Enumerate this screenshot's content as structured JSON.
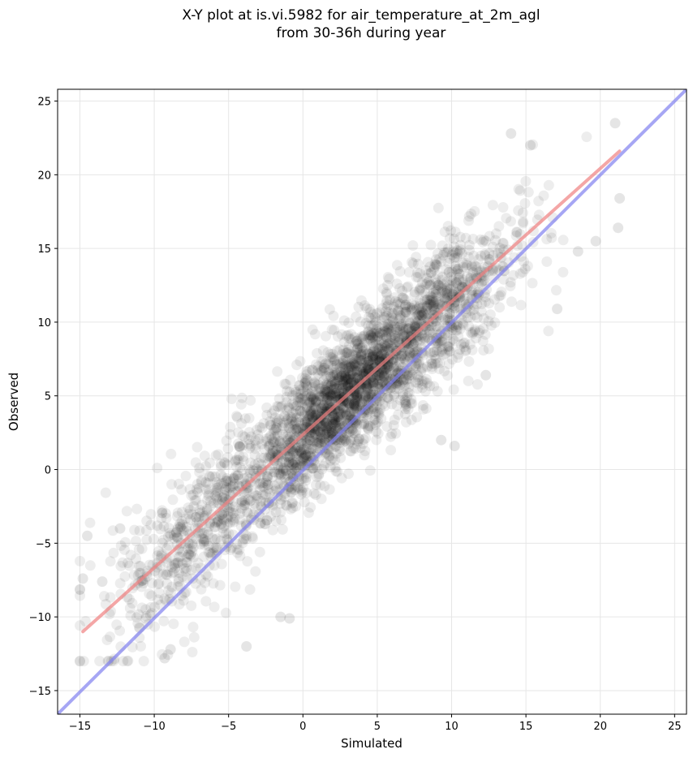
{
  "chart_data": {
    "type": "scatter",
    "title_line1": "X-Y plot at is.vi.5982 for air_temperature_at_2m_agl",
    "title_line2": "from 30-36h during year",
    "xlabel": "Simulated",
    "ylabel": "Observed",
    "xlim": [
      -16.5,
      25.8
    ],
    "ylim": [
      -16.6,
      25.8
    ],
    "xticks": [
      -15,
      -10,
      -5,
      0,
      5,
      10,
      15,
      20,
      25
    ],
    "yticks": [
      -15,
      -10,
      -5,
      0,
      5,
      10,
      15,
      20,
      25
    ],
    "xtick_labels": [
      "−15",
      "−10",
      "−5",
      "0",
      "5",
      "10",
      "15",
      "20",
      "25"
    ],
    "ytick_labels": [
      "−15",
      "−10",
      "−5",
      "0",
      "5",
      "10",
      "15",
      "20",
      "25"
    ],
    "grid": true,
    "point_color": "#000000",
    "scatter_cluster": {
      "count": 3000,
      "x_range": [
        -15,
        21.5
      ],
      "y_range": [
        -13,
        23
      ]
    },
    "series": [
      {
        "kind": "regression",
        "color": "#f08080",
        "points": [
          [
            -14.8,
            -11.0
          ],
          [
            21.3,
            21.6
          ]
        ]
      },
      {
        "kind": "identity",
        "color": "#8080f0",
        "points": [
          [
            -16.5,
            -16.6
          ],
          [
            25.8,
            25.8
          ]
        ]
      }
    ],
    "outlier_points": [
      [
        -14.8,
        -7.4
      ],
      [
        -14.5,
        -4.5
      ],
      [
        -13.5,
        -7.6
      ],
      [
        -9.3,
        -12.8
      ],
      [
        -8.9,
        -12.2
      ],
      [
        -3.8,
        -12.0
      ],
      [
        -1.5,
        -10.0
      ],
      [
        -0.9,
        -10.1
      ],
      [
        21.0,
        23.5
      ],
      [
        21.3,
        18.4
      ],
      [
        21.2,
        16.4
      ],
      [
        14.0,
        22.8
      ],
      [
        15.3,
        22.0
      ],
      [
        19.7,
        15.5
      ],
      [
        17.1,
        10.9
      ],
      [
        18.5,
        14.8
      ],
      [
        12.3,
        6.4
      ],
      [
        10.2,
        1.6
      ],
      [
        9.3,
        2.0
      ],
      [
        -12.3,
        -4.0
      ]
    ]
  }
}
